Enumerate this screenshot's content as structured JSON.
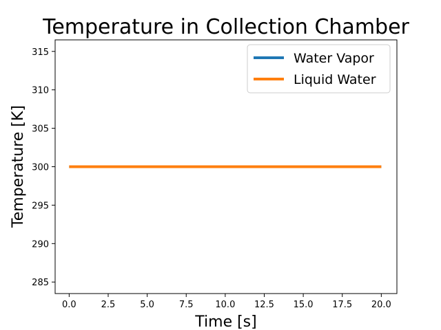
{
  "chart_data": {
    "type": "line",
    "title": "Temperature in Collection Chamber",
    "xlabel": "Time [s]",
    "ylabel": "Temperature [K]",
    "xlim": [
      -0.9,
      21.0
    ],
    "ylim": [
      283.5,
      316.5
    ],
    "xticks": [
      0.0,
      2.5,
      5.0,
      7.5,
      10.0,
      12.5,
      15.0,
      17.5,
      20.0
    ],
    "xtick_labels": [
      "0.0",
      "2.5",
      "5.0",
      "7.5",
      "10.0",
      "12.5",
      "15.0",
      "17.5",
      "20.0"
    ],
    "yticks": [
      285,
      290,
      295,
      300,
      305,
      310,
      315
    ],
    "ytick_labels": [
      "285",
      "290",
      "295",
      "300",
      "305",
      "310",
      "315"
    ],
    "grid": false,
    "legend_position": "top-right",
    "series": [
      {
        "name": "Water Vapor",
        "color": "#1f77b4",
        "x": [
          0,
          20
        ],
        "y": [
          300,
          300
        ]
      },
      {
        "name": "Liquid Water",
        "color": "#ff7f0e",
        "x": [
          0,
          20
        ],
        "y": [
          300,
          300
        ]
      }
    ]
  }
}
